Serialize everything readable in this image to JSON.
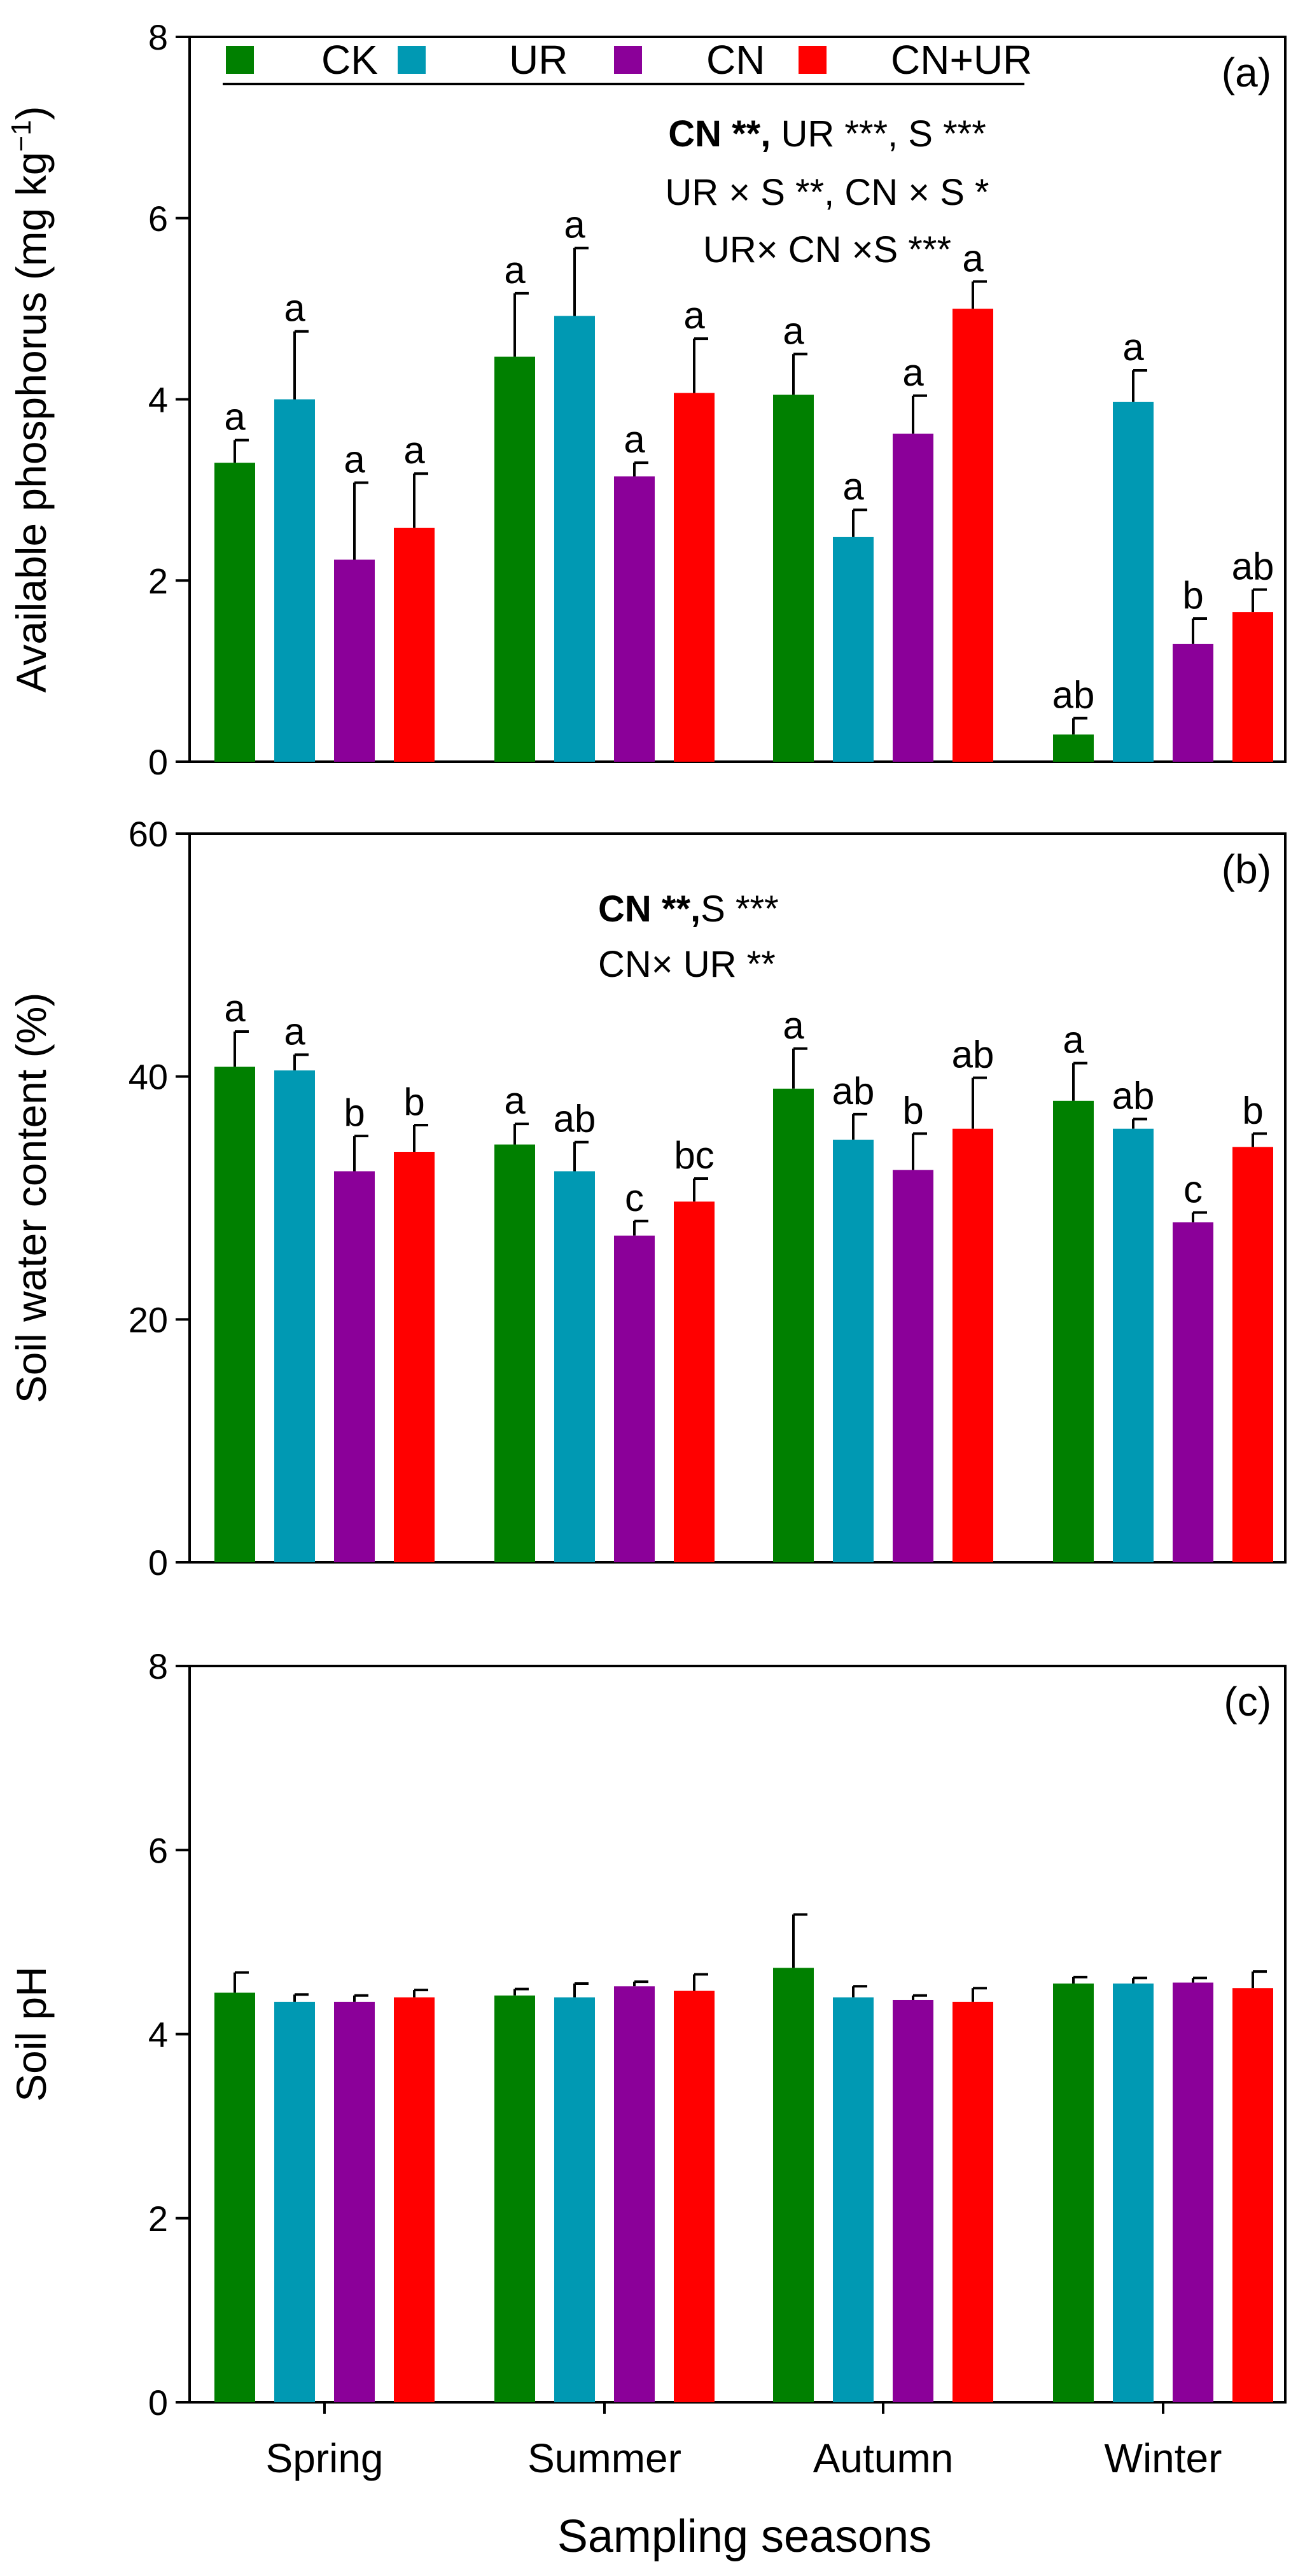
{
  "chart_data": {
    "type": "bar",
    "categories": [
      "Spring",
      "Summer",
      "Autumn",
      "Winter"
    ],
    "xlabel": "Sampling seasons",
    "legend": {
      "placement": "top-left",
      "entries": [
        "CK",
        "UR",
        "CN",
        "CN+UR"
      ]
    },
    "colors": [
      "#008000",
      "#0099b3",
      "#8b0099",
      "#ff0000"
    ],
    "panels": [
      {
        "label": "(a)",
        "ylabel_main": "Available phosphorus (mg kg",
        "ylabel_sup": "−1",
        "ylabel_end": ")",
        "ylim": [
          0,
          8
        ],
        "ticks": [
          "0",
          "2",
          "4",
          "6",
          "8"
        ],
        "stats": [
          {
            "bold": "CN **",
            "sep": ", ",
            "normal": "UR ***, S ***"
          },
          {
            "bold": "",
            "sep": "",
            "normal": "UR × S **, CN × S *"
          },
          {
            "bold": "",
            "sep": "",
            "normal": "UR× CN ×S ***"
          }
        ],
        "series": [
          {
            "name": "CK",
            "values": [
              3.3,
              4.47,
              4.05,
              0.3
            ],
            "errors": [
              0.25,
              0.7,
              0.45,
              0.18
            ],
            "letters": [
              "a",
              "a",
              "a",
              "ab"
            ]
          },
          {
            "name": "UR",
            "values": [
              4.0,
              4.92,
              2.48,
              3.97
            ],
            "errors": [
              0.75,
              0.75,
              0.3,
              0.35
            ],
            "letters": [
              "a",
              "a",
              "a",
              "a"
            ]
          },
          {
            "name": "CN",
            "values": [
              2.23,
              3.15,
              3.62,
              1.3
            ],
            "errors": [
              0.85,
              0.15,
              0.42,
              0.28
            ],
            "letters": [
              "a",
              "a",
              "a",
              "b"
            ]
          },
          {
            "name": "CN+UR",
            "values": [
              2.58,
              4.07,
              5.0,
              1.65
            ],
            "errors": [
              0.6,
              0.6,
              0.3,
              0.25
            ],
            "letters": [
              "a",
              "a",
              "a",
              "ab"
            ]
          }
        ]
      },
      {
        "label": "(b)",
        "ylabel_main": "Soil water content (%)",
        "ylabel_sup": "",
        "ylabel_end": "",
        "ylim": [
          0,
          60
        ],
        "ticks": [
          "0",
          "20",
          "40",
          "60"
        ],
        "stats": [
          {
            "bold": "CN **",
            "sep": ",",
            "normal": "S ***"
          },
          {
            "bold": "",
            "sep": "",
            "normal": "CN× UR **"
          }
        ],
        "series": [
          {
            "name": "CK",
            "values": [
              40.8,
              34.4,
              39.0,
              38.0
            ],
            "errors": [
              2.9,
              1.7,
              3.3,
              3.1
            ],
            "letters": [
              "a",
              "a",
              "a",
              "a"
            ]
          },
          {
            "name": "UR",
            "values": [
              40.5,
              32.2,
              34.8,
              35.7
            ],
            "errors": [
              1.3,
              2.4,
              2.1,
              0.8
            ],
            "letters": [
              "a",
              "ab",
              "ab",
              "ab"
            ]
          },
          {
            "name": "CN",
            "values": [
              32.2,
              26.9,
              32.3,
              28.0
            ],
            "errors": [
              2.9,
              1.2,
              3.0,
              0.8
            ],
            "letters": [
              "b",
              "c",
              "b",
              "c"
            ]
          },
          {
            "name": "CN+UR",
            "values": [
              33.8,
              29.7,
              35.7,
              34.2
            ],
            "errors": [
              2.2,
              1.9,
              4.2,
              1.1
            ],
            "letters": [
              "b",
              "bc",
              "ab",
              "b"
            ]
          }
        ]
      },
      {
        "label": "(c)",
        "ylabel_main": "Soil  pH",
        "ylabel_sup": "",
        "ylabel_end": "",
        "ylim": [
          0,
          8
        ],
        "ticks": [
          "0",
          "2",
          "4",
          "6",
          "8"
        ],
        "stats": [],
        "series": [
          {
            "name": "CK",
            "values": [
              4.45,
              4.42,
              4.72,
              4.55
            ],
            "errors": [
              0.22,
              0.07,
              0.58,
              0.07
            ],
            "letters": [
              "",
              "",
              "",
              ""
            ]
          },
          {
            "name": "UR",
            "values": [
              4.35,
              4.4,
              4.4,
              4.55
            ],
            "errors": [
              0.08,
              0.15,
              0.12,
              0.06
            ],
            "letters": [
              "",
              "",
              "",
              ""
            ]
          },
          {
            "name": "CN",
            "values": [
              4.35,
              4.52,
              4.37,
              4.56
            ],
            "errors": [
              0.07,
              0.05,
              0.05,
              0.05
            ],
            "letters": [
              "",
              "",
              "",
              ""
            ]
          },
          {
            "name": "CN+UR",
            "values": [
              4.4,
              4.47,
              4.35,
              4.5
            ],
            "errors": [
              0.08,
              0.18,
              0.15,
              0.18
            ],
            "letters": [
              "",
              "",
              "",
              ""
            ]
          }
        ]
      }
    ]
  }
}
